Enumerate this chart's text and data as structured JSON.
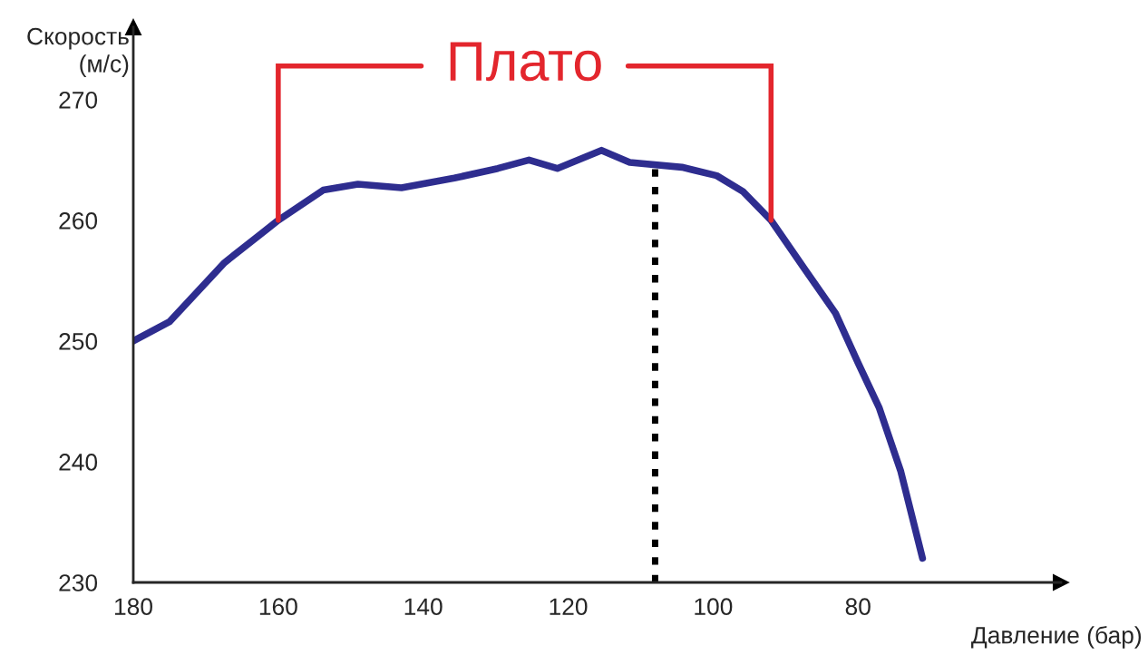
{
  "chart_data": {
    "type": "line",
    "xlabel": "Давление (бар)",
    "ylabel": "Скорость\n(м/с)",
    "xlim": [
      180,
      52
    ],
    "ylim": [
      230,
      276
    ],
    "xticks": [
      180,
      160,
      140,
      120,
      100,
      80
    ],
    "yticks": [
      230,
      240,
      250,
      260,
      270
    ],
    "grid": false,
    "marker": "none",
    "line_style": "solid",
    "series": [
      {
        "color": "#2e2d8f",
        "x": [
          180,
          175,
          167.4,
          160,
          153.8,
          149,
          143,
          135.7,
          129.7,
          125.4,
          121.5,
          115.4,
          111.5,
          104.3,
          99.5,
          95.9,
          92,
          87.4,
          83.1,
          80,
          77.1,
          74.1,
          71.1
        ],
        "values": [
          250,
          251.6,
          256.5,
          260,
          262.5,
          263,
          262.7,
          263.5,
          264.3,
          265,
          264.3,
          265.8,
          264.8,
          264.4,
          263.7,
          262.4,
          260,
          256,
          252.3,
          248.2,
          244.5,
          239.2,
          232
        ]
      }
    ],
    "ref_lines": [
      {
        "axis": "x",
        "value": 108,
        "color": "#000000",
        "line_style": "dotted"
      },
      {
        "axis": "x",
        "value": 160,
        "color": "#e3262d",
        "line_style": "solid"
      },
      {
        "axis": "x",
        "value": 92,
        "color": "#e3262d",
        "line_style": "solid"
      }
    ],
    "annotations": [
      "Плато"
    ]
  }
}
